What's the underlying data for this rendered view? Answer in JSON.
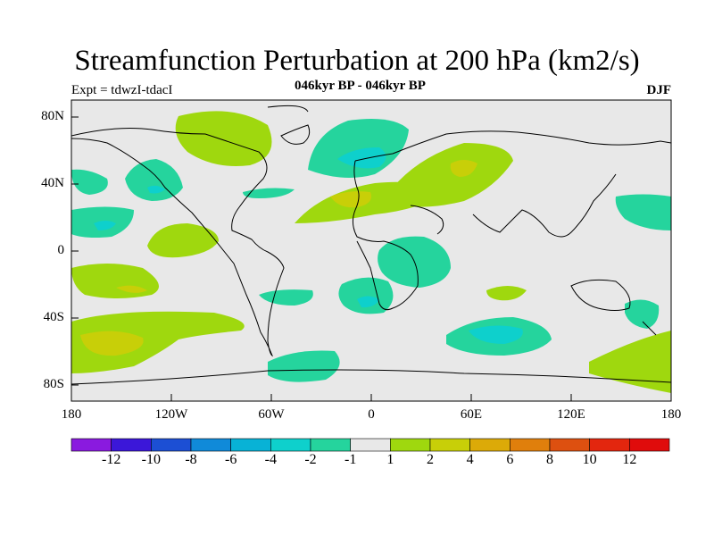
{
  "title": "Streamfunction Perturbation at 200 hPa (km2/s)",
  "expt": "Expt = tdwzI-tdacI",
  "period": "046kyr BP - 046kyr BP",
  "season": "DJF",
  "lat_labels": [
    "80N",
    "40N",
    "0",
    "40S",
    "80S"
  ],
  "lon_labels": [
    "180",
    "120W",
    "60W",
    "0",
    "60E",
    "120E",
    "180"
  ],
  "colorbar": {
    "labels": [
      "-12",
      "-10",
      "-8",
      "-6",
      "-4",
      "-2",
      "-1",
      "1",
      "2",
      "4",
      "6",
      "8",
      "10",
      "12"
    ],
    "colors": [
      "#8a1adf",
      "#3b17d9",
      "#1c4fd4",
      "#108ad9",
      "#08b2d6",
      "#0ed0cc",
      "#25d49d",
      "#e8e8e8",
      "#9fd80e",
      "#c8cf08",
      "#dcaa08",
      "#e07f0c",
      "#dd5010",
      "#e3260e",
      "#e00c0c"
    ]
  },
  "map_colors": {
    "neutral": "#e8e8e8",
    "pos1": "#9fd80e",
    "pos2": "#c8cf08",
    "neg1": "#25d49d",
    "neg2": "#0ed0cc"
  }
}
